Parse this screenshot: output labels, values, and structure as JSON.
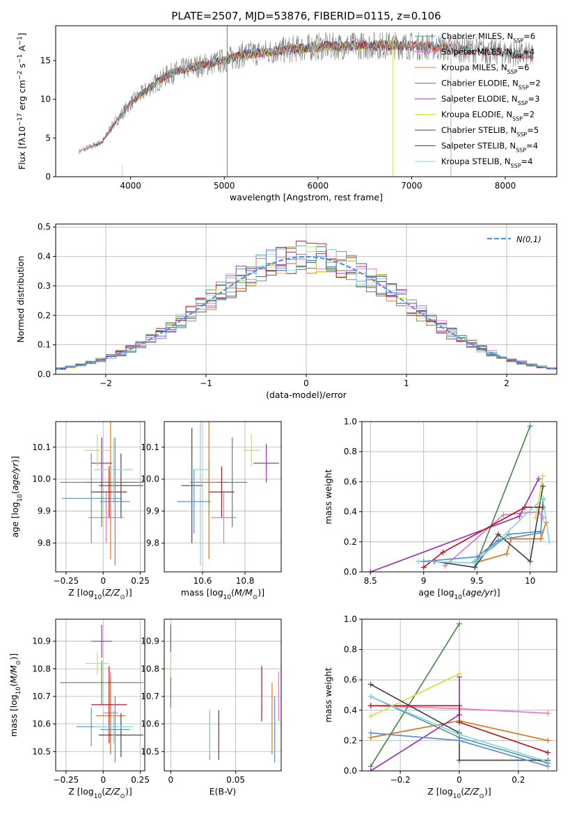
{
  "figure_title": "PLATE=2507, MJD=53876, FIBERID=0115, z=0.106",
  "colors": {
    "Chabrier MILES": "#5a9aa8",
    "Salpeter MILES": "#e377c2",
    "Kroupa MILES": "#d4781c",
    "Chabrier ELODIE": "#4d8a4d",
    "Salpeter ELODIE": "#9b30b8",
    "Kroupa ELODIE": "#d0e040",
    "Chabrier STELIB": "#444444",
    "Salpeter STELIB": "#b8121e",
    "Kroupa STELIB": "#7fd6dc",
    "gaussian": "#5b8dd9"
  },
  "chart_data": [
    {
      "id": "spectrum",
      "type": "line",
      "xlabel": "wavelength [Angstrom, rest frame]",
      "ylabel": "Flux [f",
      "xlim": [
        3200,
        8550
      ],
      "ylim": [
        0,
        19.5
      ],
      "xticks": [
        4000,
        5000,
        6000,
        7000,
        8000
      ],
      "yticks": [
        0,
        5,
        10,
        15
      ],
      "legend_position": "upper-right",
      "legend": [
        {
          "label": "Chabrier MILES, N",
          "n": "6"
        },
        {
          "label": "Salpeter MILES, N",
          "n": "4"
        },
        {
          "label": "Kroupa MILES, N",
          "n": "6"
        },
        {
          "label": "Chabrier ELODIE, N",
          "n": "2"
        },
        {
          "label": "Salpeter ELODIE, N",
          "n": "3"
        },
        {
          "label": "Kroupa ELODIE, N",
          "n": "2"
        },
        {
          "label": "Chabrier STELIB, N",
          "n": "5"
        },
        {
          "label": "Salpeter STELIB, N",
          "n": "4"
        },
        {
          "label": "Kroupa STELIB, N",
          "n": "4"
        }
      ],
      "continuum": {
        "x": [
          3500,
          3700,
          3800,
          4000,
          4200,
          4400,
          4600,
          4800,
          5000,
          5200,
          5600,
          6000,
          6400,
          6800,
          7200,
          7600,
          8000,
          8300
        ],
        "y": [
          3.5,
          4.5,
          6.5,
          9.5,
          11.5,
          13.2,
          14.0,
          14.5,
          15.0,
          15.8,
          16.3,
          16.8,
          16.9,
          17.0,
          16.8,
          16.4,
          16.0,
          15.6
        ]
      }
    },
    {
      "id": "residuals",
      "type": "histogram",
      "xlabel": "(data-model)/error",
      "ylabel": "Normed distribution",
      "xlim": [
        -2.5,
        2.5
      ],
      "ylim": [
        0,
        0.51
      ],
      "xticks": [
        -2,
        -1,
        0,
        1,
        2
      ],
      "yticks": [
        0.0,
        0.1,
        0.2,
        0.3,
        0.4,
        0.5
      ],
      "legend": "N(0,1)",
      "legend_position": "upper-right",
      "bin_width": 0.1
    },
    {
      "id": "age_vs_Z",
      "type": "scatter",
      "xlabel": "Z [log",
      "ylabel": "age  [log",
      "xlim": [
        -0.32,
        0.28
      ],
      "ylim": [
        9.71,
        10.18
      ],
      "xticks": [
        -0.25,
        0.0,
        0.25
      ],
      "yticks": [
        9.8,
        9.9,
        10.0,
        10.1
      ],
      "points": [
        {
          "m": "Chabrier MILES",
          "x": -0.08,
          "y": 9.94,
          "ex": 0.2,
          "ey": 0.14
        },
        {
          "m": "Salpeter MILES",
          "x": 0.02,
          "y": 9.88,
          "ex": 0.12,
          "ey": 0.08
        },
        {
          "m": "Kroupa MILES",
          "x": 0.05,
          "y": 9.99,
          "ex": 0.17,
          "ey": 0.24
        },
        {
          "m": "Chabrier ELODIE",
          "x": -0.01,
          "y": 9.99,
          "ex": 0.28,
          "ey": 0.14
        },
        {
          "m": "Salpeter ELODIE",
          "x": -0.01,
          "y": 10.05,
          "ex": 0.07,
          "ey": 0.08
        },
        {
          "m": "Kroupa ELODIE",
          "x": -0.04,
          "y": 10.09,
          "ex": 0.09,
          "ey": 0.05
        },
        {
          "m": "Chabrier STELIB",
          "x": 0.12,
          "y": 9.98,
          "ex": 0.15,
          "ey": 0.1
        },
        {
          "m": "Salpeter STELIB",
          "x": 0.04,
          "y": 9.96,
          "ex": 0.12,
          "ey": 0.08
        },
        {
          "m": "Kroupa STELIB",
          "x": 0.07,
          "y": 10.03,
          "ex": 0.13,
          "ey": 0.1
        },
        {
          "m": "gaussian",
          "x": 0.08,
          "y": 9.93,
          "ex": 0.1,
          "ey": 0.2
        }
      ]
    },
    {
      "id": "age_vs_mass",
      "type": "scatter",
      "xlabel": "mass [log",
      "ylabel": "",
      "xlim": [
        10.42,
        10.97
      ],
      "ylim": [
        9.71,
        10.18
      ],
      "xticks": [
        10.6,
        10.8
      ],
      "yticks": [
        9.8,
        9.9,
        10.0,
        10.1
      ],
      "points": [
        {
          "m": "Chabrier MILES",
          "x": 10.63,
          "y": 9.99,
          "ex": 0.09,
          "ey": 0.07
        },
        {
          "m": "Salpeter MILES",
          "x": 10.7,
          "y": 9.88,
          "ex": 0.06,
          "ey": 0.08
        },
        {
          "m": "Kroupa MILES",
          "x": 10.63,
          "y": 9.99,
          "ex": 0.06,
          "ey": 0.24
        },
        {
          "m": "Chabrier ELODIE",
          "x": 10.74,
          "y": 9.99,
          "ex": 0.07,
          "ey": 0.14
        },
        {
          "m": "Salpeter ELODIE",
          "x": 10.9,
          "y": 10.05,
          "ex": 0.06,
          "ey": 0.06
        },
        {
          "m": "Kroupa ELODIE",
          "x": 10.83,
          "y": 10.09,
          "ex": 0.04,
          "ey": 0.05
        },
        {
          "m": "Chabrier STELIB",
          "x": 10.55,
          "y": 9.98,
          "ex": 0.05,
          "ey": 0.18
        },
        {
          "m": "Salpeter STELIB",
          "x": 10.69,
          "y": 9.96,
          "ex": 0.06,
          "ey": 0.08
        },
        {
          "m": "Kroupa STELIB",
          "x": 10.59,
          "y": 10.03,
          "ex": 0.05,
          "ey": 0.3
        },
        {
          "m": "gaussian",
          "x": 10.56,
          "y": 9.93,
          "ex": 0.08,
          "ey": 0.1
        }
      ]
    },
    {
      "id": "weight_vs_age",
      "type": "line",
      "xlabel": "age  [log",
      "ylabel": "mass weight",
      "xlim": [
        8.42,
        10.25
      ],
      "ylim": [
        0,
        1.0
      ],
      "xticks": [
        8.5,
        9.0,
        9.5,
        10.0
      ],
      "yticks": [
        0.0,
        0.2,
        0.4,
        0.6,
        0.8,
        1.0
      ],
      "series": [
        {
          "m": "Chabrier MILES",
          "x": [
            9.48,
            9.8,
            10.1,
            10.12
          ],
          "y": [
            0.07,
            0.25,
            0.27,
            0.48
          ]
        },
        {
          "m": "Salpeter MILES",
          "x": [
            9.2,
            9.75,
            10.08,
            10.12
          ],
          "y": [
            0.04,
            0.38,
            0.4,
            0.36
          ]
        },
        {
          "m": "Kroupa MILES",
          "x": [
            9.48,
            9.78,
            9.82,
            10.1,
            10.15
          ],
          "y": [
            0.06,
            0.12,
            0.22,
            0.22,
            0.33
          ]
        },
        {
          "m": "Chabrier ELODIE",
          "x": [
            9.48,
            10.0
          ],
          "y": [
            0.03,
            0.97
          ]
        },
        {
          "m": "Salpeter ELODIE",
          "x": [
            8.5,
            9.9,
            10.08
          ],
          "y": [
            0.0,
            0.37,
            0.62
          ]
        },
        {
          "m": "Kroupa ELODIE",
          "x": [
            10.05,
            10.12
          ],
          "y": [
            0.36,
            0.64
          ]
        },
        {
          "m": "Chabrier STELIB",
          "x": [
            9.1,
            9.48,
            9.7,
            10.0,
            10.12
          ],
          "y": [
            0.07,
            0.03,
            0.25,
            0.07,
            0.57
          ]
        },
        {
          "m": "Salpeter STELIB",
          "x": [
            9.0,
            9.18,
            9.95,
            10.12
          ],
          "y": [
            0.03,
            0.13,
            0.43,
            0.43
          ]
        },
        {
          "m": "Kroupa STELIB",
          "x": [
            8.95,
            9.48,
            10.12,
            10.18
          ],
          "y": [
            0.07,
            0.06,
            0.49,
            0.2
          ]
        },
        {
          "m": "gaussian",
          "x": [
            9.0,
            9.5,
            9.7,
            10.1
          ],
          "y": [
            0.07,
            0.1,
            0.21,
            0.26
          ]
        }
      ]
    },
    {
      "id": "mass_vs_Z",
      "type": "scatter",
      "xlabel": "Z [log",
      "ylabel": "mass [log",
      "xlim": [
        -0.32,
        0.28
      ],
      "ylim": [
        10.43,
        10.98
      ],
      "xticks": [
        -0.25,
        0.0,
        0.25
      ],
      "yticks": [
        10.5,
        10.6,
        10.7,
        10.8,
        10.9
      ],
      "points": [
        {
          "m": "Chabrier MILES",
          "x": -0.08,
          "y": 10.59,
          "ex": 0.1,
          "ey": 0.07
        },
        {
          "m": "Salpeter MILES",
          "x": 0.05,
          "y": 10.64,
          "ex": 0.05,
          "ey": 0.15
        },
        {
          "m": "Kroupa MILES",
          "x": 0.05,
          "y": 10.63,
          "ex": 0.1,
          "ey": 0.14
        },
        {
          "m": "Chabrier ELODIE",
          "x": -0.01,
          "y": 10.75,
          "ex": 0.28,
          "ey": 0.08
        },
        {
          "m": "Salpeter ELODIE",
          "x": -0.01,
          "y": 10.9,
          "ex": 0.07,
          "ey": 0.06
        },
        {
          "m": "Kroupa ELODIE",
          "x": -0.04,
          "y": 10.82,
          "ex": 0.08,
          "ey": 0.04
        },
        {
          "m": "Chabrier STELIB",
          "x": 0.12,
          "y": 10.56,
          "ex": 0.15,
          "ey": 0.08
        },
        {
          "m": "Salpeter STELIB",
          "x": 0.04,
          "y": 10.67,
          "ex": 0.12,
          "ey": 0.14
        },
        {
          "m": "Kroupa STELIB",
          "x": 0.07,
          "y": 10.59,
          "ex": 0.13,
          "ey": 0.06
        },
        {
          "m": "gaussian",
          "x": 0.08,
          "y": 10.58,
          "ex": 0.1,
          "ey": 0.12
        }
      ]
    },
    {
      "id": "mass_vs_EBV",
      "type": "scatter",
      "xlabel": "E(B-V)",
      "ylabel": "",
      "xlim": [
        -0.005,
        0.085
      ],
      "ylim": [
        10.43,
        10.98
      ],
      "xticks": [
        0.0,
        0.05
      ],
      "yticks": [
        10.5,
        10.6,
        10.7,
        10.8,
        10.9
      ],
      "points": [
        {
          "m": "Chabrier MILES",
          "x": 0.03,
          "y": 10.56,
          "ex": 0.0,
          "ey": 0.09
        },
        {
          "m": "Salpeter MILES",
          "x": 0.083,
          "y": 10.7,
          "ex": 0.0,
          "ey": 0.09
        },
        {
          "m": "Kroupa MILES",
          "x": 0.078,
          "y": 10.62,
          "ex": 0.0,
          "ey": 0.13
        },
        {
          "m": "Chabrier ELODIE",
          "x": 0.0,
          "y": 10.73,
          "ex": 0.0,
          "ey": 0.07
        },
        {
          "m": "Salpeter ELODIE",
          "x": 0.0,
          "y": 10.91,
          "ex": 0.0,
          "ey": 0.05
        },
        {
          "m": "Kroupa ELODIE",
          "x": 0.0,
          "y": 10.8,
          "ex": 0.0,
          "ey": 0.03
        },
        {
          "m": "Chabrier STELIB",
          "x": 0.037,
          "y": 10.56,
          "ex": 0.0,
          "ey": 0.09
        },
        {
          "m": "Salpeter STELIB",
          "x": 0.07,
          "y": 10.71,
          "ex": 0.0,
          "ey": 0.1
        },
        {
          "m": "Kroupa STELIB",
          "x": 0.03,
          "y": 10.57,
          "ex": 0.0,
          "ey": 0.08
        },
        {
          "m": "gaussian",
          "x": 0.08,
          "y": 10.58,
          "ex": 0.0,
          "ey": 0.12
        }
      ]
    },
    {
      "id": "weight_vs_Z",
      "type": "line",
      "xlabel": "Z [log",
      "ylabel": "mass weight",
      "xlim": [
        -0.33,
        0.33
      ],
      "ylim": [
        0,
        1.0
      ],
      "xticks": [
        -0.2,
        0.0,
        0.2
      ],
      "yticks": [
        0.0,
        0.2,
        0.4,
        0.6,
        0.8,
        1.0
      ],
      "series": [
        {
          "m": "Chabrier MILES",
          "x": [
            -0.3,
            0.0,
            0.3
          ],
          "y": [
            0.49,
            0.22,
            0.05
          ]
        },
        {
          "m": "Salpeter MILES",
          "x": [
            -0.3,
            0.0,
            0.3
          ],
          "y": [
            0.43,
            0.41,
            0.38
          ]
        },
        {
          "m": "Kroupa MILES",
          "x": [
            -0.3,
            0.0,
            0.3
          ],
          "y": [
            0.22,
            0.33,
            0.2
          ]
        },
        {
          "m": "Chabrier ELODIE",
          "x": [
            -0.3,
            0.0
          ],
          "y": [
            0.03,
            0.97
          ]
        },
        {
          "m": "Salpeter ELODIE",
          "x": [
            -0.3,
            0.0,
            0.0
          ],
          "y": [
            0.0,
            0.37,
            0.62
          ]
        },
        {
          "m": "Kroupa ELODIE",
          "x": [
            -0.3,
            0.0
          ],
          "y": [
            0.36,
            0.64
          ]
        },
        {
          "m": "Chabrier STELIB",
          "x": [
            -0.3,
            0.0,
            0.0,
            0.3
          ],
          "y": [
            0.57,
            0.25,
            0.07,
            0.07
          ]
        },
        {
          "m": "Salpeter STELIB",
          "x": [
            -0.3,
            0.0,
            0.0,
            0.3
          ],
          "y": [
            0.43,
            0.43,
            0.32,
            0.12
          ]
        },
        {
          "m": "Kroupa STELIB",
          "x": [
            -0.3,
            0.0,
            0.3
          ],
          "y": [
            0.49,
            0.24,
            0.06
          ]
        },
        {
          "m": "gaussian",
          "x": [
            -0.3,
            0.0,
            0.3
          ],
          "y": [
            0.25,
            0.2,
            0.03
          ]
        }
      ]
    }
  ]
}
